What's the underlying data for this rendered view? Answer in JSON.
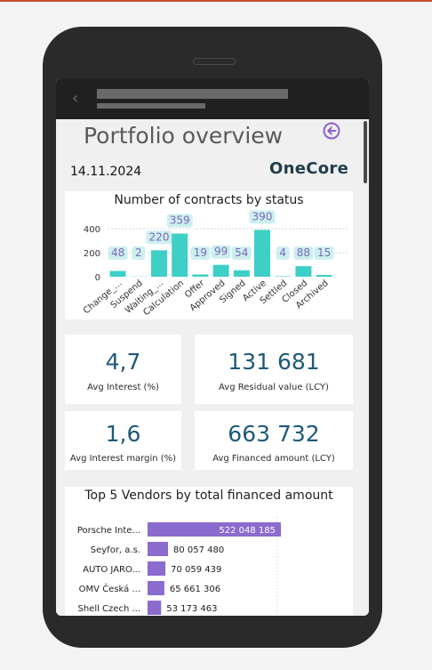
{
  "app": {
    "page_title": "Portfolio overview",
    "report_date": "14.11.2024",
    "logo_text": "OneCore"
  },
  "status_chart": {
    "title": "Number of contracts by status"
  },
  "kpis": [
    {
      "value": "4,7",
      "label": "Avg Interest (%)"
    },
    {
      "value": "131 681",
      "label": "Avg Residual value (LCY)"
    },
    {
      "value": "1,6",
      "label": "Avg Interest margin (%)"
    },
    {
      "value": "663 732",
      "label": "Avg Financed amount (LCY)"
    }
  ],
  "vendors_chart": {
    "title": "Top 5 Vendors by total financed amount"
  },
  "colors": {
    "status_bar": "#3ecfc6",
    "status_label_bg": "#cdeff0",
    "status_label_text": "#7a68b8",
    "vendor_bar": "#8c6bcf",
    "kpi_value": "#1e5a78",
    "back_icon": "#8b5fd1"
  },
  "chart_data": [
    {
      "type": "bar",
      "title": "Number of contracts by status",
      "categories": [
        "Change_...",
        "Suspend",
        "Waiting_...",
        "Calculation",
        "Offer",
        "Approved",
        "Signed",
        "Active",
        "Settled",
        "Closed",
        "Archived"
      ],
      "values": [
        48,
        2,
        220,
        359,
        19,
        99,
        54,
        390,
        4,
        88,
        15
      ],
      "yticks": [
        0,
        200,
        400
      ],
      "ylim": [
        0,
        450
      ],
      "grid": true
    },
    {
      "type": "bar",
      "orientation": "horizontal",
      "title": "Top 5 Vendors by total financed amount",
      "categories": [
        "Porsche Inte...",
        "Seyfor, a.s.",
        "AUTO JARO...",
        "OMV Česká ...",
        "Shell Czech ..."
      ],
      "values": [
        522048185,
        80057480,
        70059439,
        65661306,
        53173463
      ],
      "value_labels": [
        "522 048 185",
        "80 057 480",
        "70 059 439",
        "65 661 306",
        "53 173 463"
      ]
    }
  ]
}
